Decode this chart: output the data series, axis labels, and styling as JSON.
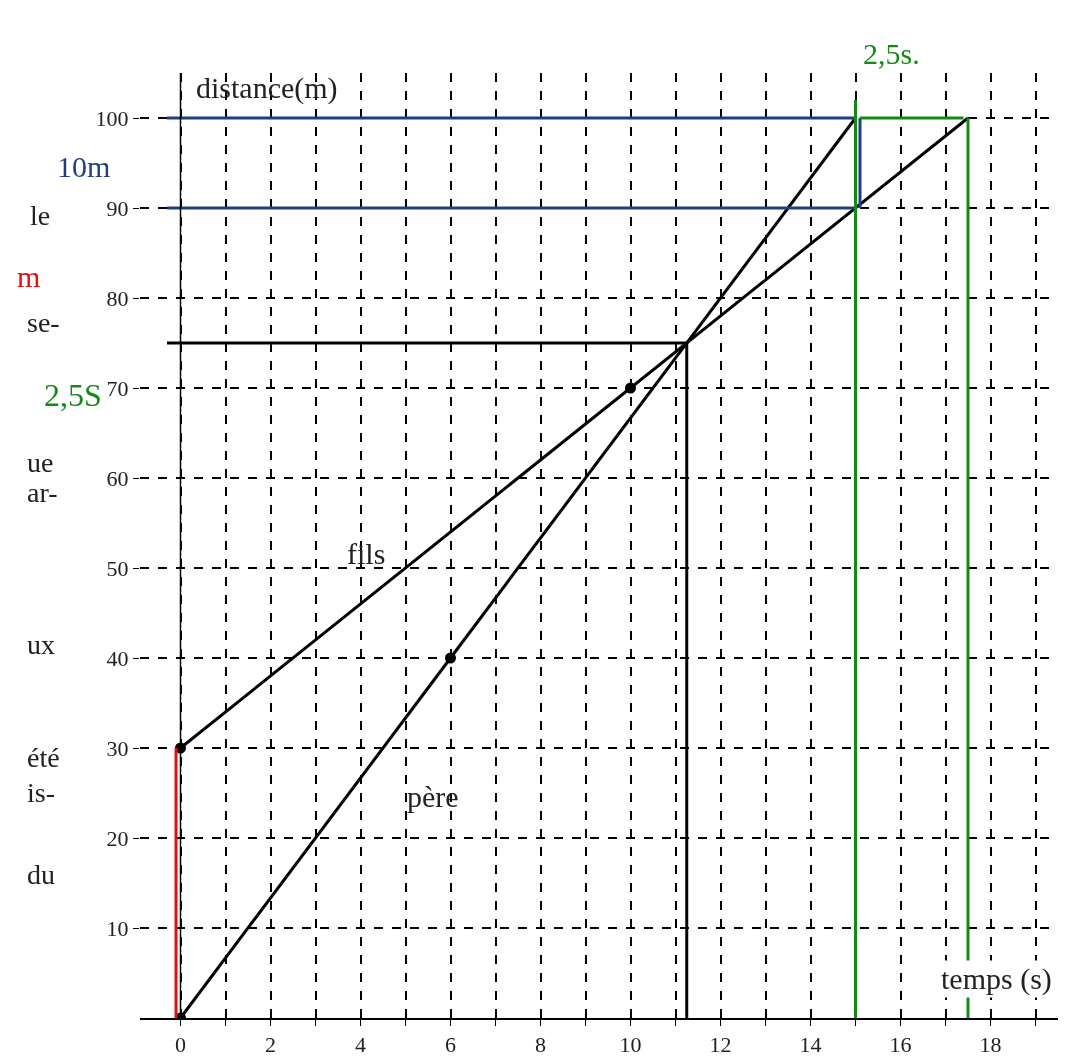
{
  "chart_data": {
    "type": "line",
    "xlabel": "temps (s)",
    "ylabel": "distance(m)",
    "xlim": [
      -0.9,
      19.5
    ],
    "ylim": [
      0,
      105
    ],
    "xticks": [
      0,
      {
        "value": 1,
        "label": null
      },
      2,
      {
        "value": 3,
        "label": null
      },
      4,
      {
        "value": 5,
        "label": null
      },
      6,
      {
        "value": 7,
        "label": null
      },
      8,
      {
        "value": 9,
        "label": null
      },
      10,
      {
        "value": 11,
        "label": null
      },
      12,
      {
        "value": 13,
        "label": null
      },
      14,
      {
        "value": 15,
        "label": null
      },
      16,
      {
        "value": 17,
        "label": null
      },
      18,
      {
        "value": 19,
        "label": null
      }
    ],
    "yticks": [
      10,
      20,
      30,
      40,
      50,
      60,
      70,
      80,
      90,
      100
    ],
    "grid": true,
    "line_style": "solid",
    "series": [
      {
        "color": "#000000",
        "x": [
          0,
          6,
          15
        ],
        "values": [
          0,
          40,
          100
        ]
      },
      {
        "color": "#000000",
        "x": [
          0,
          10,
          17.5
        ],
        "values": [
          30,
          70,
          100
        ]
      },
      {
        "type": "scatter",
        "color": "#000000",
        "x": [
          0,
          6,
          0,
          10
        ],
        "values": [
          0,
          40,
          30,
          70
        ]
      },
      {
        "color": "#000000",
        "x": [
          -0.3,
          11.25
        ],
        "values": [
          75,
          75
        ]
      },
      {
        "color": "#000000",
        "x": [
          11.25,
          11.25
        ],
        "values": [
          0,
          75
        ]
      },
      {
        "color": "#1f3f80",
        "x": [
          -0.3,
          15
        ],
        "values": [
          100,
          100
        ]
      },
      {
        "color": "#1f3f80",
        "x": [
          -0.3,
          15
        ],
        "values": [
          90,
          90
        ]
      },
      {
        "color": "#1f3f80",
        "x": [
          15.1,
          15.1
        ],
        "values": [
          90,
          100
        ]
      },
      {
        "color": "#138a13",
        "x": [
          15,
          15
        ],
        "values": [
          0,
          102
        ]
      },
      {
        "color": "#138a13",
        "x": [
          17.5,
          17.5
        ],
        "values": [
          0,
          100
        ]
      },
      {
        "color": "#138a13",
        "x": [
          15.1,
          17.4
        ],
        "values": [
          100,
          100
        ]
      },
      {
        "color": "#e01010",
        "x": [
          -0.1,
          -0.1
        ],
        "values": [
          0,
          30
        ]
      }
    ],
    "annotations": [
      "2,5s.",
      "10m",
      "le",
      "m",
      "se-",
      "2,5S",
      "ue",
      "ar-",
      "fils",
      "ux",
      "été",
      "is-",
      "père",
      "du"
    ]
  }
}
